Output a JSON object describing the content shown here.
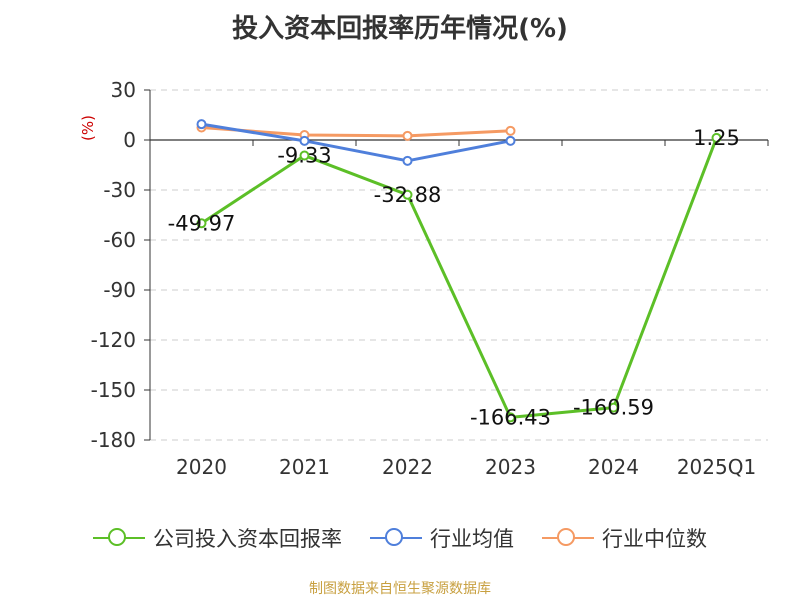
{
  "title": "投入资本回报率历年情况(%)",
  "y_unit": "(%)",
  "source": "制图数据来自恒生聚源数据库",
  "chart_data": {
    "type": "line",
    "title": "投入资本回报率历年情况(%)",
    "ylabel": "(%)",
    "xlabel": "",
    "categories": [
      "2020",
      "2021",
      "2022",
      "2023",
      "2024",
      "2025Q1"
    ],
    "ylim": [
      -180,
      30
    ],
    "yticks": [
      30,
      0,
      -30,
      -60,
      -90,
      -120,
      -150,
      -180
    ],
    "grid": true,
    "legend": "bottom",
    "series": [
      {
        "name": "公司投入资本回报率",
        "color": "#5cbf27",
        "values": [
          -49.97,
          -9.33,
          -32.88,
          -166.43,
          -160.59,
          1.25
        ],
        "labels": [
          "-49.97",
          "-9.33",
          "-32.88",
          "-166.43",
          "-160.59",
          "1.25"
        ]
      },
      {
        "name": "行业均值",
        "color": "#4f7fdb",
        "values": [
          9.5,
          -0.5,
          -12.5,
          -0.5,
          null,
          null
        ]
      },
      {
        "name": "行业中位数",
        "color": "#f59a63",
        "values": [
          7.5,
          3.0,
          2.5,
          5.5,
          null,
          null
        ]
      }
    ]
  }
}
